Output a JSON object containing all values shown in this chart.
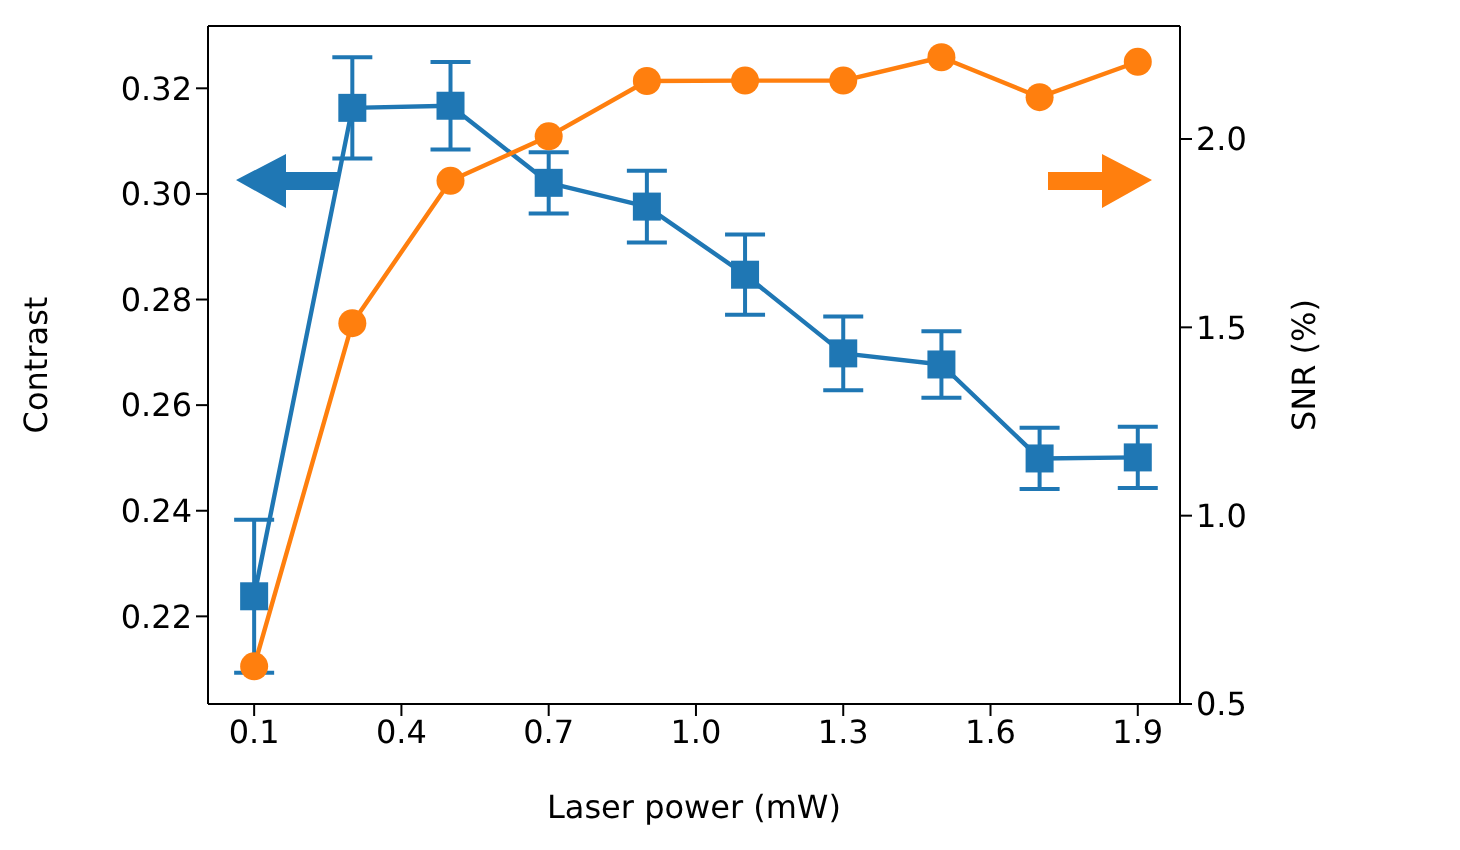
{
  "chart_data": {
    "type": "line",
    "xlabel": "Laser power (mW)",
    "ylabel": "Contrast",
    "y2label": "SNR (%)",
    "x": [
      0.1,
      0.3,
      0.5,
      0.7,
      0.9,
      1.1,
      1.3,
      1.5,
      1.7,
      1.9
    ],
    "xlim": [
      0.006,
      1.986
    ],
    "xticks": [
      0.1,
      0.4,
      0.7,
      {
        "value": 1,
        "label": "1.0"
      },
      1.3,
      1.6,
      1.9
    ],
    "ylim": [
      0.2034,
      0.3318
    ],
    "yticks": [
      0.22,
      0.24,
      0.26,
      0.28,
      {
        "value": 0.3,
        "label": "0.30"
      },
      0.32
    ],
    "y2lim": [
      0.5,
      2.3
    ],
    "y2ticks": [
      0.5,
      {
        "value": 1,
        "label": "1.0"
      },
      1.5,
      {
        "value": 2,
        "label": "2.0"
      }
    ],
    "grid": false,
    "legend": false,
    "series": [
      {
        "color": "#1f77b4",
        "marker": "square",
        "values": [
          0.2238,
          0.3163,
          0.3167,
          0.3021,
          0.2976,
          0.2847,
          0.2698,
          0.2677,
          0.2499,
          0.2501
        ],
        "errors": [
          0.0145,
          0.0096,
          0.0083,
          0.0058,
          0.0068,
          0.0076,
          0.007,
          0.0063,
          0.0058,
          0.0058
        ]
      },
      {
        "color": "#ff7f0e",
        "marker": "circle",
        "axis": "y2",
        "values": [
          0.6,
          1.511,
          1.889,
          2.007,
          2.154,
          2.155,
          2.155,
          2.217,
          2.111,
          2.205
        ]
      }
    ]
  }
}
